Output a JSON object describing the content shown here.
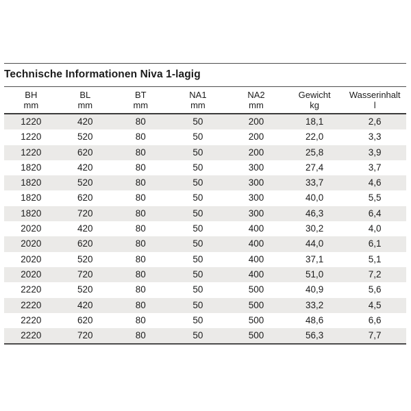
{
  "section": {
    "title": "Technische Informationen Niva 1-lagig"
  },
  "table": {
    "columns": [
      {
        "label": "BH",
        "unit": "mm"
      },
      {
        "label": "BL",
        "unit": "mm"
      },
      {
        "label": "BT",
        "unit": "mm"
      },
      {
        "label": "NA1",
        "unit": "mm"
      },
      {
        "label": "NA2",
        "unit": "mm"
      },
      {
        "label": "Gewicht",
        "unit": "kg"
      },
      {
        "label": "Wasserinhalt",
        "unit": "l"
      }
    ],
    "rows": [
      [
        "1220",
        "420",
        "80",
        "50",
        "200",
        "18,1",
        "2,6"
      ],
      [
        "1220",
        "520",
        "80",
        "50",
        "200",
        "22,0",
        "3,3"
      ],
      [
        "1220",
        "620",
        "80",
        "50",
        "200",
        "25,8",
        "3,9"
      ],
      [
        "1820",
        "420",
        "80",
        "50",
        "300",
        "27,4",
        "3,7"
      ],
      [
        "1820",
        "520",
        "80",
        "50",
        "300",
        "33,7",
        "4,6"
      ],
      [
        "1820",
        "620",
        "80",
        "50",
        "300",
        "40,0",
        "5,5"
      ],
      [
        "1820",
        "720",
        "80",
        "50",
        "300",
        "46,3",
        "6,4"
      ],
      [
        "2020",
        "420",
        "80",
        "50",
        "400",
        "30,2",
        "4,0"
      ],
      [
        "2020",
        "620",
        "80",
        "50",
        "400",
        "44,0",
        "6,1"
      ],
      [
        "2020",
        "520",
        "80",
        "50",
        "400",
        "37,1",
        "5,1"
      ],
      [
        "2020",
        "720",
        "80",
        "50",
        "400",
        "51,0",
        "7,2"
      ],
      [
        "2220",
        "520",
        "80",
        "50",
        "500",
        "40,9",
        "5,6"
      ],
      [
        "2220",
        "420",
        "80",
        "50",
        "500",
        "33,2",
        "4,5"
      ],
      [
        "2220",
        "620",
        "80",
        "50",
        "500",
        "48,6",
        "6,6"
      ],
      [
        "2220",
        "720",
        "80",
        "50",
        "500",
        "56,3",
        "7,7"
      ]
    ]
  },
  "colors": {
    "text": "#1c1c1c",
    "rule": "#4c4c4c",
    "stripe": "#ebeae8",
    "background": "#ffffff"
  }
}
